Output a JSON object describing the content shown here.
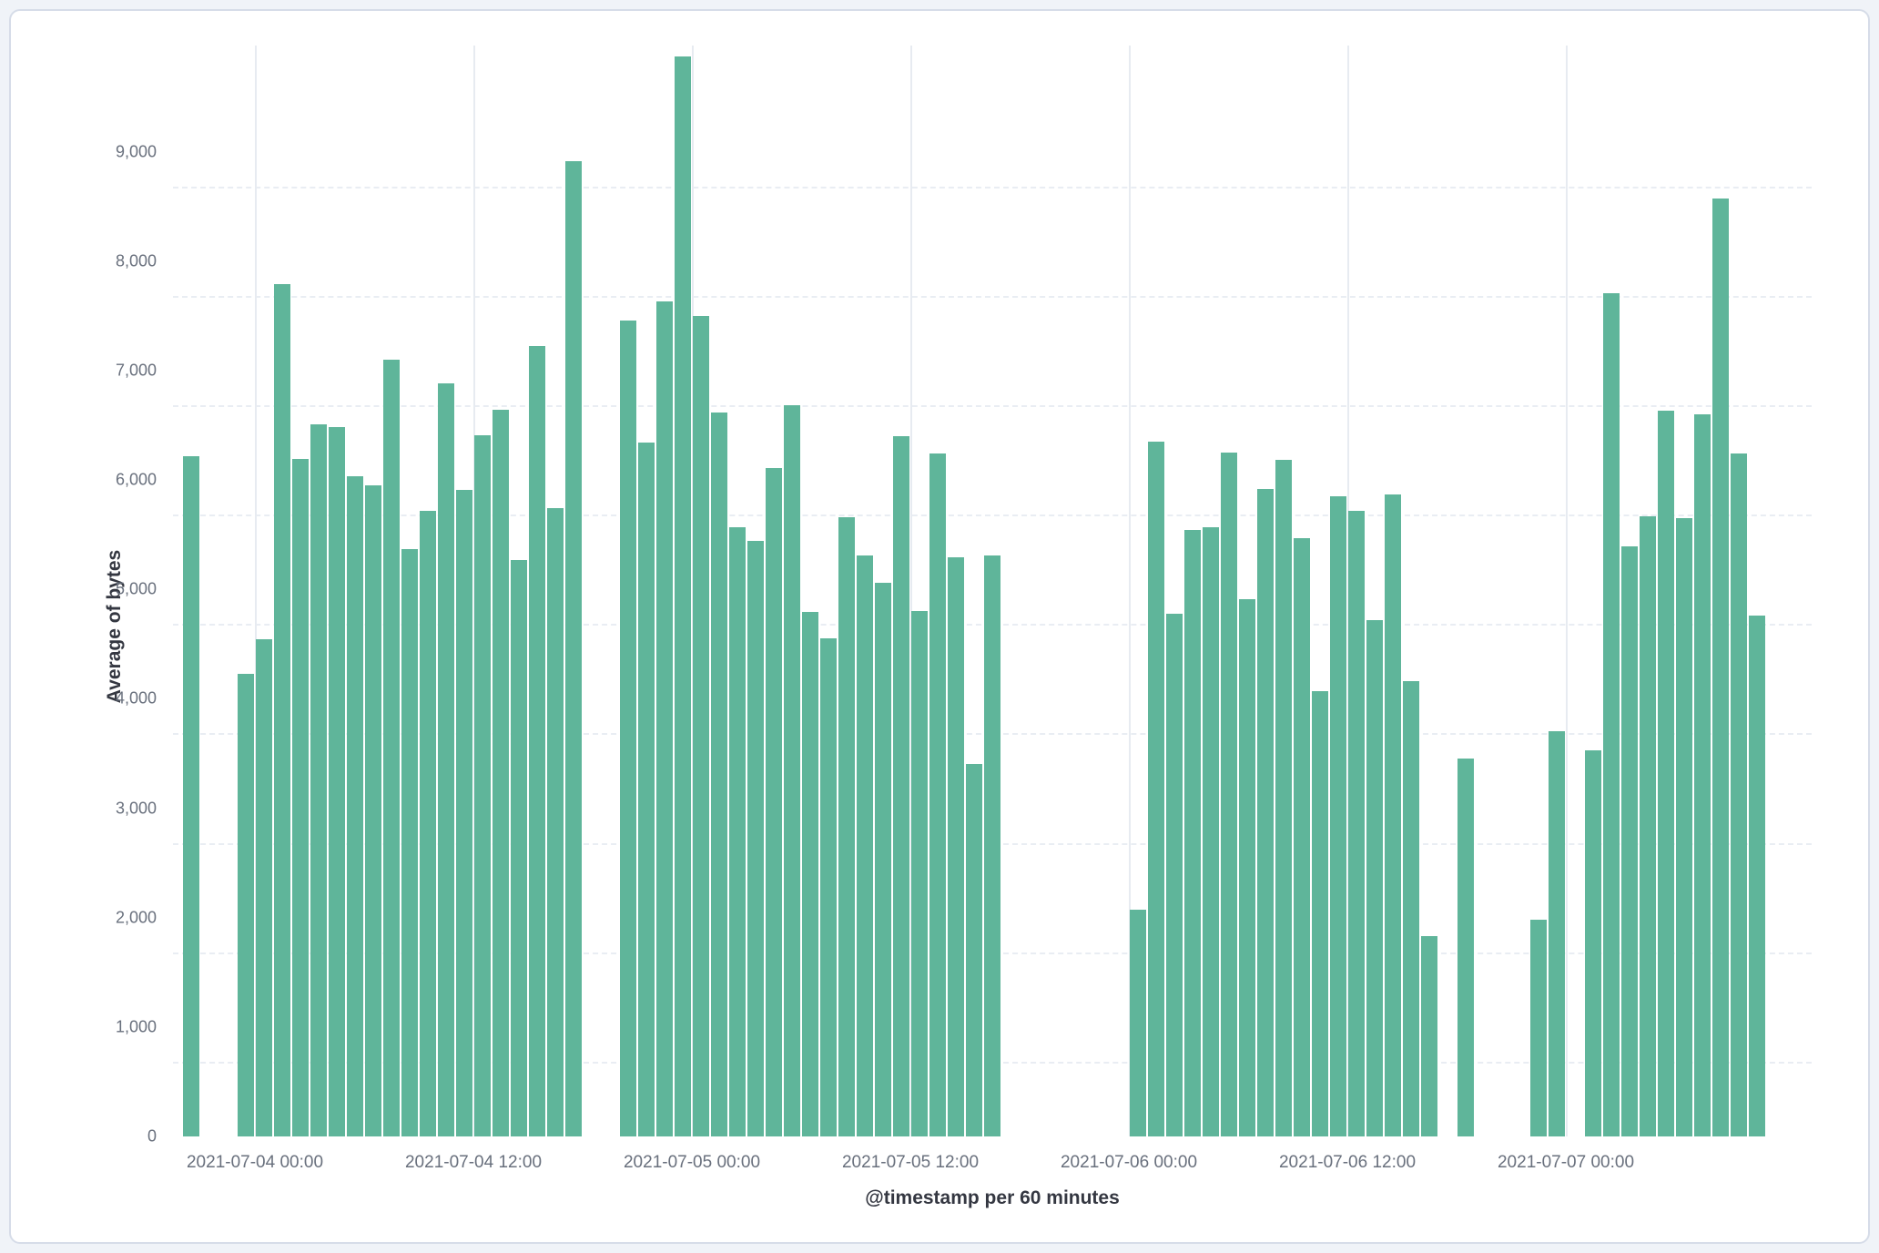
{
  "chart_data": {
    "type": "bar",
    "title": "",
    "xlabel": "@timestamp per 60 minutes",
    "ylabel": "Average of bytes",
    "bar_color": "#5fb59a",
    "grid": true,
    "legend": "none",
    "ylim": [
      0,
      9970
    ],
    "x_domain": [
      "2021-07-03 19:30",
      "2021-07-07 13:30"
    ],
    "y_ticks": [
      {
        "value": 0,
        "label": "0"
      },
      {
        "value": 1000,
        "label": "1,000"
      },
      {
        "value": 2000,
        "label": "2,000"
      },
      {
        "value": 3000,
        "label": "3,000"
      },
      {
        "value": 4000,
        "label": "4,000"
      },
      {
        "value": 5000,
        "label": "5,000"
      },
      {
        "value": 6000,
        "label": "6,000"
      },
      {
        "value": 7000,
        "label": "7,000"
      },
      {
        "value": 8000,
        "label": "8,000"
      },
      {
        "value": 9000,
        "label": "9,000"
      }
    ],
    "x_ticks": [
      "2021-07-04 00:00",
      "2021-07-04 12:00",
      "2021-07-05 00:00",
      "2021-07-05 12:00",
      "2021-07-06 00:00",
      "2021-07-06 12:00",
      "2021-07-07 00:00"
    ],
    "points": [
      {
        "t": "2021-07-03 20:00",
        "v": 6220
      },
      {
        "t": "2021-07-03 23:00",
        "v": 4230
      },
      {
        "t": "2021-07-04 00:00",
        "v": 4540
      },
      {
        "t": "2021-07-04 01:00",
        "v": 7790
      },
      {
        "t": "2021-07-04 02:00",
        "v": 6190
      },
      {
        "t": "2021-07-04 03:00",
        "v": 6510
      },
      {
        "t": "2021-07-04 04:00",
        "v": 6480
      },
      {
        "t": "2021-07-04 05:00",
        "v": 6030
      },
      {
        "t": "2021-07-04 06:00",
        "v": 5950
      },
      {
        "t": "2021-07-04 07:00",
        "v": 7100
      },
      {
        "t": "2021-07-04 08:00",
        "v": 5370
      },
      {
        "t": "2021-07-04 09:00",
        "v": 5720
      },
      {
        "t": "2021-07-04 10:00",
        "v": 6880
      },
      {
        "t": "2021-07-04 11:00",
        "v": 5910
      },
      {
        "t": "2021-07-04 12:00",
        "v": 6410
      },
      {
        "t": "2021-07-04 13:00",
        "v": 6640
      },
      {
        "t": "2021-07-04 14:00",
        "v": 5270
      },
      {
        "t": "2021-07-04 15:00",
        "v": 7220
      },
      {
        "t": "2021-07-04 16:00",
        "v": 5740
      },
      {
        "t": "2021-07-04 17:00",
        "v": 8910
      },
      {
        "t": "2021-07-04 20:00",
        "v": 7460
      },
      {
        "t": "2021-07-04 21:00",
        "v": 6340
      },
      {
        "t": "2021-07-04 22:00",
        "v": 7630
      },
      {
        "t": "2021-07-04 23:00",
        "v": 9870
      },
      {
        "t": "2021-07-05 00:00",
        "v": 7500
      },
      {
        "t": "2021-07-05 01:00",
        "v": 6620
      },
      {
        "t": "2021-07-05 02:00",
        "v": 5570
      },
      {
        "t": "2021-07-05 03:00",
        "v": 5440
      },
      {
        "t": "2021-07-05 04:00",
        "v": 6110
      },
      {
        "t": "2021-07-05 05:00",
        "v": 6680
      },
      {
        "t": "2021-07-05 06:00",
        "v": 4790
      },
      {
        "t": "2021-07-05 07:00",
        "v": 4550
      },
      {
        "t": "2021-07-05 08:00",
        "v": 5660
      },
      {
        "t": "2021-07-05 09:00",
        "v": 5310
      },
      {
        "t": "2021-07-05 10:00",
        "v": 5060
      },
      {
        "t": "2021-07-05 11:00",
        "v": 6400
      },
      {
        "t": "2021-07-05 12:00",
        "v": 4800
      },
      {
        "t": "2021-07-05 13:00",
        "v": 6240
      },
      {
        "t": "2021-07-05 14:00",
        "v": 5290
      },
      {
        "t": "2021-07-05 15:00",
        "v": 3400
      },
      {
        "t": "2021-07-05 16:00",
        "v": 5310
      },
      {
        "t": "2021-07-06 00:00",
        "v": 2070
      },
      {
        "t": "2021-07-06 01:00",
        "v": 6350
      },
      {
        "t": "2021-07-06 02:00",
        "v": 4780
      },
      {
        "t": "2021-07-06 03:00",
        "v": 5540
      },
      {
        "t": "2021-07-06 04:00",
        "v": 5570
      },
      {
        "t": "2021-07-06 05:00",
        "v": 6250
      },
      {
        "t": "2021-07-06 06:00",
        "v": 4910
      },
      {
        "t": "2021-07-06 07:00",
        "v": 5920
      },
      {
        "t": "2021-07-06 08:00",
        "v": 6180
      },
      {
        "t": "2021-07-06 09:00",
        "v": 5470
      },
      {
        "t": "2021-07-06 10:00",
        "v": 4070
      },
      {
        "t": "2021-07-06 11:00",
        "v": 5850
      },
      {
        "t": "2021-07-06 12:00",
        "v": 5720
      },
      {
        "t": "2021-07-06 13:00",
        "v": 4720
      },
      {
        "t": "2021-07-06 14:00",
        "v": 5870
      },
      {
        "t": "2021-07-06 15:00",
        "v": 4160
      },
      {
        "t": "2021-07-06 16:00",
        "v": 1830
      },
      {
        "t": "2021-07-06 18:00",
        "v": 3450
      },
      {
        "t": "2021-07-06 22:00",
        "v": 1980
      },
      {
        "t": "2021-07-06 23:00",
        "v": 3700
      },
      {
        "t": "2021-07-07 01:00",
        "v": 3530
      },
      {
        "t": "2021-07-07 02:00",
        "v": 7710
      },
      {
        "t": "2021-07-07 03:00",
        "v": 5390
      },
      {
        "t": "2021-07-07 04:00",
        "v": 5670
      },
      {
        "t": "2021-07-07 05:00",
        "v": 6630
      },
      {
        "t": "2021-07-07 06:00",
        "v": 5650
      },
      {
        "t": "2021-07-07 07:00",
        "v": 6600
      },
      {
        "t": "2021-07-07 08:00",
        "v": 8570
      },
      {
        "t": "2021-07-07 09:00",
        "v": 6240
      },
      {
        "t": "2021-07-07 10:00",
        "v": 4760
      }
    ]
  }
}
